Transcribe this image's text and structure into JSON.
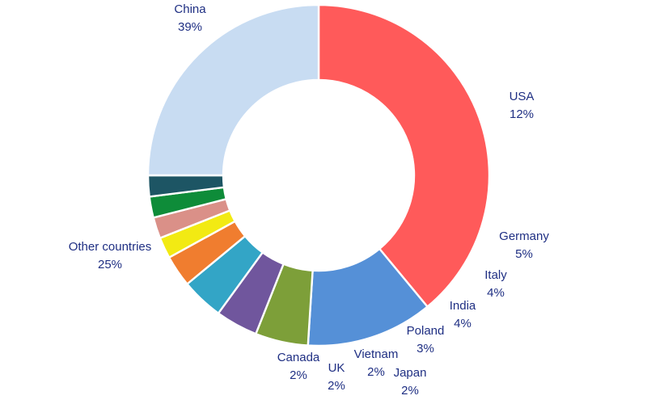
{
  "chart_data": {
    "type": "pie",
    "donut": true,
    "title": "",
    "slices": [
      {
        "label": "China",
        "value": 39,
        "value_label": "39%",
        "color": "#ff5a5a"
      },
      {
        "label": "USA",
        "value": 12,
        "value_label": "12%",
        "color": "#5590d7"
      },
      {
        "label": "Germany",
        "value": 5,
        "value_label": "5%",
        "color": "#7d9f39"
      },
      {
        "label": "Italy",
        "value": 4,
        "value_label": "4%",
        "color": "#70569d"
      },
      {
        "label": "India",
        "value": 4,
        "value_label": "4%",
        "color": "#33a5c6"
      },
      {
        "label": "Poland",
        "value": 3,
        "value_label": "3%",
        "color": "#f07d2f"
      },
      {
        "label": "Japan",
        "value": 2,
        "value_label": "2%",
        "color": "#f2ea13"
      },
      {
        "label": "Vietnam",
        "value": 2,
        "value_label": "2%",
        "color": "#da9088"
      },
      {
        "label": "UK",
        "value": 2,
        "value_label": "2%",
        "color": "#0e8c39"
      },
      {
        "label": "Canada",
        "value": 2,
        "value_label": "2%",
        "color": "#1d5564"
      },
      {
        "label": "Other countries",
        "value": 25,
        "value_label": "25%",
        "color": "#c8dcf2"
      }
    ]
  }
}
